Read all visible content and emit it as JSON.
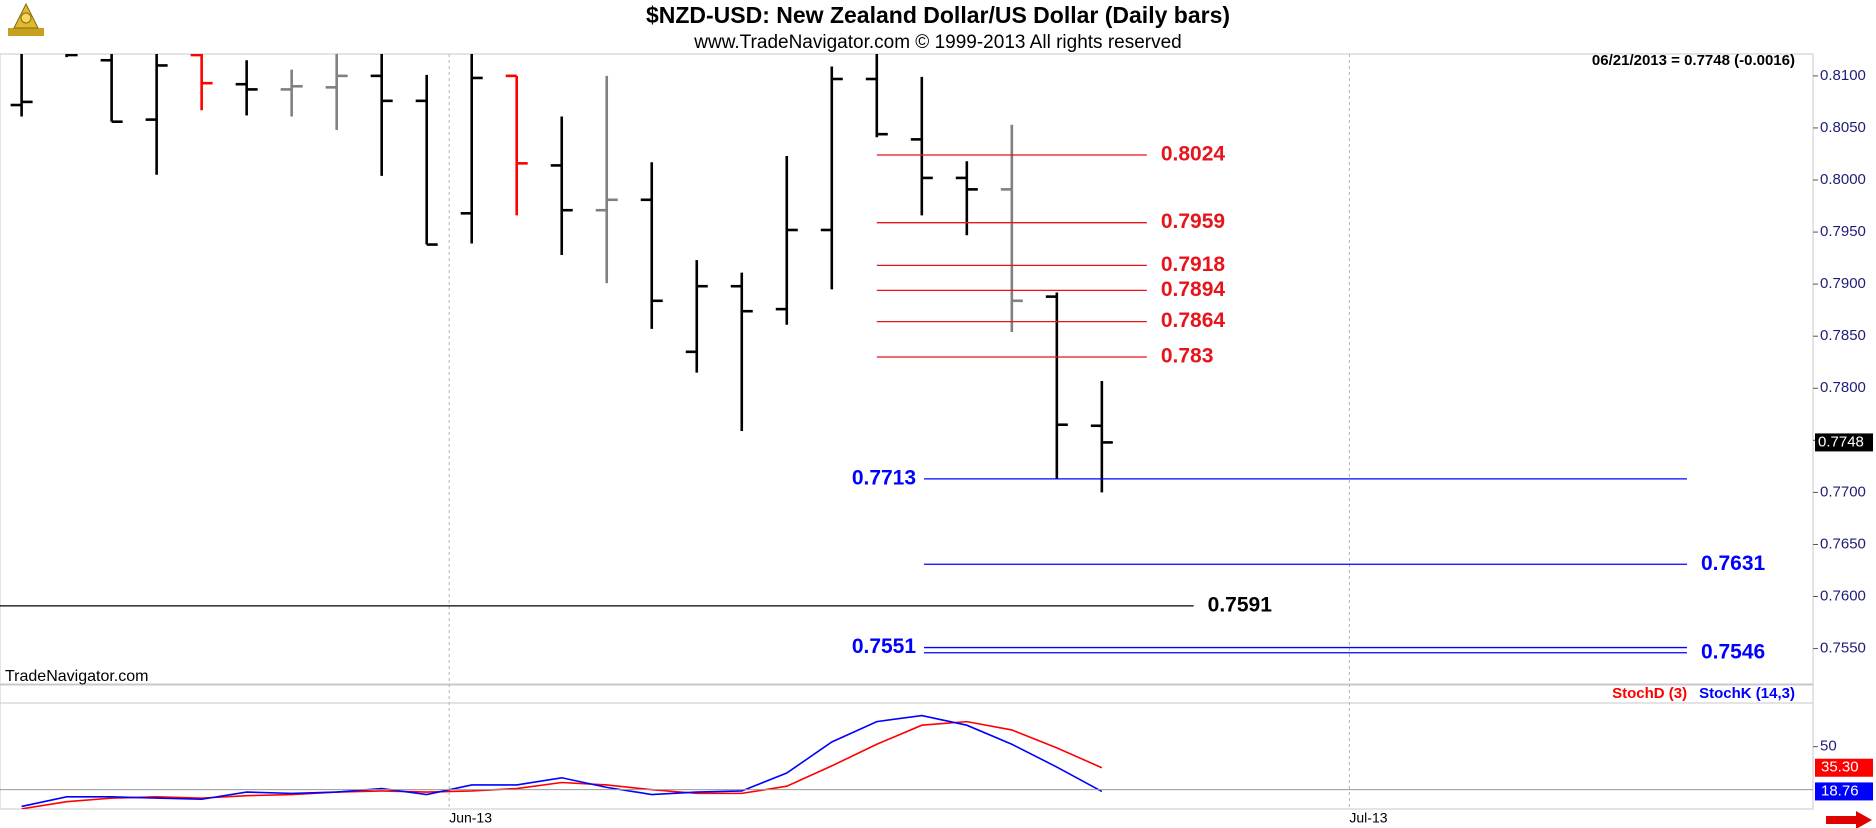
{
  "chart_data": [
    {
      "type": "ohlc",
      "title": "$NZD-USD:  New Zealand Dollar/US Dollar  (Daily bars)",
      "subtitle": "www.TradeNavigator.com © 1999-2013 All rights reserved",
      "header": "06/21/2013 = 0.7748 (-0.0016)",
      "watermark": "TradeNavigator.com",
      "open": [
        0.8072,
        0.8125,
        0.8115,
        0.8058,
        0.812,
        0.8092,
        0.8087,
        0.8089,
        0.81,
        0.8076,
        0.7968,
        0.81,
        0.8014,
        0.7971,
        0.7981,
        0.7835,
        0.7898,
        0.7876,
        0.7952,
        0.8097,
        0.8039,
        0.8002,
        0.7991,
        0.7888,
        0.7764
      ],
      "high": [
        0.813,
        0.813,
        0.813,
        0.8125,
        0.8125,
        0.8115,
        0.8106,
        0.8125,
        0.8125,
        0.8101,
        0.8125,
        0.81,
        0.8061,
        0.81,
        0.8017,
        0.7923,
        0.7911,
        0.8023,
        0.8109,
        0.8125,
        0.8099,
        0.8018,
        0.8053,
        0.7892,
        0.7807
      ],
      "low": [
        0.8061,
        0.8118,
        0.8056,
        0.8005,
        0.8067,
        0.8062,
        0.8061,
        0.8048,
        0.8004,
        0.7938,
        0.7939,
        0.7966,
        0.7928,
        0.7901,
        0.7857,
        0.7815,
        0.7759,
        0.7861,
        0.7895,
        0.8041,
        0.7966,
        0.7947,
        0.7854,
        0.7713,
        0.77
      ],
      "close": [
        0.8075,
        0.812,
        0.8056,
        0.811,
        0.8093,
        0.8087,
        0.809,
        0.81,
        0.8076,
        0.7938,
        0.8098,
        0.8016,
        0.7971,
        0.7981,
        0.7884,
        0.7898,
        0.7874,
        0.7952,
        0.8097,
        0.8044,
        0.8002,
        0.7991,
        0.7884,
        0.7765,
        0.7748
      ],
      "colors": [
        "#000000",
        "#000000",
        "#000000",
        "#000000",
        "#ff0000",
        "#000000",
        "#808080",
        "#808080",
        "#000000",
        "#000000",
        "#000000",
        "#ff0000",
        "#000000",
        "#808080",
        "#000000",
        "#000000",
        "#000000",
        "#000000",
        "#000000",
        "#000000",
        "#000000",
        "#000000",
        "#808080",
        "#000000",
        "#000000"
      ],
      "levels": [
        {
          "value": 0.8024,
          "color": "#e8141c",
          "label_side": "right"
        },
        {
          "value": 0.7959,
          "color": "#e8141c",
          "label_side": "right"
        },
        {
          "value": 0.7918,
          "color": "#e8141c",
          "label_side": "right"
        },
        {
          "value": 0.7894,
          "color": "#e8141c",
          "label_side": "right"
        },
        {
          "value": 0.7864,
          "color": "#e8141c",
          "label_side": "right"
        },
        {
          "value": 0.783,
          "color": "#e8141c",
          "label_side": "right"
        },
        {
          "value": 0.7713,
          "color": "#0000ff",
          "label_side": "left"
        },
        {
          "value": 0.7631,
          "color": "#0000ff",
          "label_side": "right"
        },
        {
          "value": 0.7591,
          "color": "#000000",
          "label_side": "right"
        },
        {
          "value": 0.7551,
          "color": "#0000ff",
          "label_side": "left"
        },
        {
          "value": 0.7546,
          "color": "#0000ff",
          "label_side": "right"
        }
      ],
      "ylim": [
        0.7516,
        0.8121
      ],
      "yticks": [
        {
          "value": 0.755,
          "label": "0.7550"
        },
        {
          "value": 0.76,
          "label": "0.7600"
        },
        {
          "value": 0.765,
          "label": "0.7650"
        },
        {
          "value": 0.77,
          "label": "0.7700"
        },
        {
          "value": 0.775,
          "label": "0.7750"
        },
        {
          "value": 0.78,
          "label": "0.7800"
        },
        {
          "value": 0.785,
          "label": "0.7850"
        },
        {
          "value": 0.79,
          "label": "0.7900"
        },
        {
          "value": 0.795,
          "label": "0.7950"
        },
        {
          "value": 0.8,
          "label": "0.8000"
        },
        {
          "value": 0.805,
          "label": "0.8050"
        },
        {
          "value": 0.81,
          "label": "0.8100"
        }
      ],
      "xlim": [
        -0.48,
        39.8
      ],
      "xticks": [
        {
          "value": 9.5,
          "label": "Jun-13"
        },
        {
          "value": 29.5,
          "label": "Jul-13"
        }
      ]
    },
    {
      "type": "line",
      "series": [
        {
          "name": "StochD (3)",
          "color": "#ff0000",
          "values": [
            6.6,
            11.6,
            14.1,
            15,
            14.1,
            15.8,
            16.6,
            18.3,
            19.1,
            18.3,
            19.1,
            20.8,
            25,
            23.3,
            20,
            17.4,
            17.4,
            22.4,
            36.6,
            51.7,
            65,
            67.5,
            61.7,
            49.2,
            35.3
          ],
          "value_labels": [
            null,
            null,
            null,
            null,
            null,
            null,
            null,
            null,
            null,
            null,
            null,
            null,
            null,
            null,
            null,
            null,
            null,
            null,
            null,
            null,
            null,
            null,
            null,
            null,
            "35.30"
          ]
        },
        {
          "name": "StochK (14,3)",
          "color": "#0000ff",
          "values": [
            8.3,
            15,
            15,
            14.1,
            13.3,
            18.3,
            17.4,
            18.3,
            20.8,
            16.6,
            23.3,
            23.3,
            28.3,
            21.6,
            16.6,
            18.3,
            19.1,
            31.6,
            53.3,
            67.5,
            71.7,
            65,
            51.7,
            35.8,
            18.76
          ],
          "value_labels": [
            null,
            null,
            null,
            null,
            null,
            null,
            null,
            null,
            null,
            null,
            null,
            null,
            null,
            null,
            null,
            null,
            null,
            null,
            null,
            null,
            null,
            null,
            null,
            null,
            "18.76"
          ]
        }
      ],
      "ylim": [
        6.5,
        80.5
      ],
      "yticks": [
        50
      ],
      "hlines": [
        20
      ]
    }
  ]
}
